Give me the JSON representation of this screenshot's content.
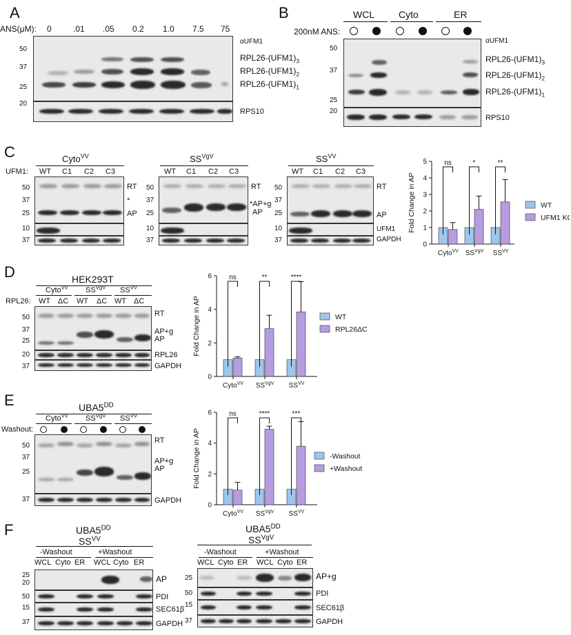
{
  "panels": {
    "A": {
      "letter": "A",
      "ans_label": "ANS(μM):",
      "concentrations": [
        "0",
        ".01",
        ".05",
        "0.2",
        "1.0",
        "7.5",
        "75"
      ],
      "antibody": "αUFM1",
      "markers": [
        "50",
        "37",
        "25",
        "20"
      ],
      "bands": [
        "RPL26-(UFM1)3",
        "RPL26-(UFM1)2",
        "RPL26-(UFM1)1"
      ],
      "loading": "RPS10"
    },
    "B": {
      "letter": "B",
      "groups": [
        "WCL",
        "Cyto",
        "ER"
      ],
      "ans_label": "200nM ANS:",
      "antibody": "αUFM1",
      "markers": [
        "50",
        "37",
        "25",
        "20"
      ],
      "bands": [
        "RPL26-(UFM1)3",
        "RPL26-(UFM1)2",
        "RPL26-(UFM1)1"
      ],
      "loading": "RPS10"
    },
    "C": {
      "letter": "C",
      "blot_titles": [
        "CytoVV",
        "SSVgV",
        "SSVV"
      ],
      "row_label": "UFM1:",
      "lanes": [
        "WT",
        "C1",
        "C2",
        "C3"
      ],
      "markers_top": [
        "50",
        "37",
        "25"
      ],
      "markers_bottom": [
        "10",
        "37"
      ],
      "labels1": [
        "RT",
        "*",
        "AP"
      ],
      "labels2": [
        "RT",
        "*AP+g",
        "AP"
      ],
      "labels3": [
        "RT",
        "AP",
        "UFM1",
        "GAPDH"
      ]
    },
    "D": {
      "letter": "D",
      "title": "HEK293T",
      "groups": [
        "CytoVV",
        "SSVgV",
        "SSVV"
      ],
      "row_label": "RPL26:",
      "lanes": [
        "WT",
        "ΔC",
        "WT",
        "ΔC",
        "WT",
        "ΔC"
      ],
      "markers": [
        "50",
        "37",
        "25",
        "20",
        "37"
      ],
      "labels": [
        "RT",
        "AP+g",
        "AP",
        "RPL26",
        "GAPDH"
      ]
    },
    "E": {
      "letter": "E",
      "title": "UBA5DD",
      "groups": [
        "CytoVV",
        "SSVgV",
        "SSVV"
      ],
      "row_label": "Washout:",
      "markers": [
        "50",
        "37",
        "25",
        "37"
      ],
      "labels": [
        "RT",
        "AP+g",
        "AP",
        "GAPDH"
      ]
    },
    "F": {
      "letter": "F",
      "left": {
        "title": "UBA5DD",
        "subtitle": "SSVV",
        "conditions": [
          "-Washout",
          "+Washout"
        ],
        "lanes": [
          "WCL",
          "Cyto",
          "ER",
          "WCL",
          "Cyto",
          "ER"
        ],
        "markers": [
          "25",
          "20",
          "50",
          "15",
          "37"
        ],
        "labels": [
          "AP",
          "PDI",
          "SEC61β",
          "GAPDH"
        ]
      },
      "right": {
        "title": "UBA5DD",
        "subtitle": "SSVgV",
        "conditions": [
          "-Washout",
          "+Washout"
        ],
        "lanes": [
          "WCL",
          "Cyto",
          "ER",
          "WCL",
          "Cyto",
          "ER"
        ],
        "markers": [
          "25",
          "50",
          "15",
          "37"
        ],
        "labels": [
          "AP+g",
          "PDI",
          "SEC61β",
          "GAPDH"
        ]
      }
    }
  },
  "chart_data": [
    {
      "type": "bar",
      "panel": "C",
      "ylabel": "Fold Change in AP",
      "categories": [
        "CytoVV",
        "SSVgV",
        "SSVV"
      ],
      "ylim": [
        0,
        5
      ],
      "yticks": [
        "0",
        "1",
        "2",
        "3",
        "4",
        "5"
      ],
      "series": [
        {
          "name": "WT",
          "color": "#9fc5ea",
          "values": [
            1.0,
            1.0,
            1.0
          ],
          "errors": [
            0,
            0,
            0
          ]
        },
        {
          "name": "UFM1 KO",
          "color": "#b69ce0",
          "values": [
            0.88,
            2.1,
            2.55
          ],
          "errors": [
            0.42,
            0.8,
            1.35
          ]
        }
      ],
      "significance": [
        "ns",
        "*",
        "**"
      ]
    },
    {
      "type": "bar",
      "panel": "D",
      "ylabel": "Fold Change in AP",
      "categories": [
        "CytoVV",
        "SSVgV",
        "SSVV"
      ],
      "ylim": [
        0,
        6
      ],
      "yticks": [
        "0",
        "2",
        "4",
        "6"
      ],
      "series": [
        {
          "name": "WT",
          "color": "#9fc5ea",
          "values": [
            1.0,
            1.0,
            1.0
          ],
          "errors": [
            0,
            0,
            0
          ]
        },
        {
          "name": "RPL26ΔC",
          "color": "#b69ce0",
          "values": [
            1.1,
            2.85,
            3.85
          ],
          "errors": [
            0.07,
            0.8,
            1.8
          ]
        }
      ],
      "significance": [
        "ns",
        "**",
        "****"
      ]
    },
    {
      "type": "bar",
      "panel": "E",
      "ylabel": "Fold Change in AP",
      "categories": [
        "CytoVV",
        "SSVgV",
        "SSVV"
      ],
      "ylim": [
        0,
        6
      ],
      "yticks": [
        "0",
        "2",
        "4",
        "6"
      ],
      "series": [
        {
          "name": "-Washout",
          "color": "#9fc5ea",
          "values": [
            1.0,
            1.0,
            1.0
          ],
          "errors": [
            0,
            0,
            0
          ]
        },
        {
          "name": "+Washout",
          "color": "#b69ce0",
          "values": [
            0.95,
            4.9,
            3.8
          ],
          "errors": [
            0.5,
            0.2,
            1.6
          ]
        }
      ],
      "significance": [
        "ns",
        "****",
        "***"
      ]
    }
  ]
}
